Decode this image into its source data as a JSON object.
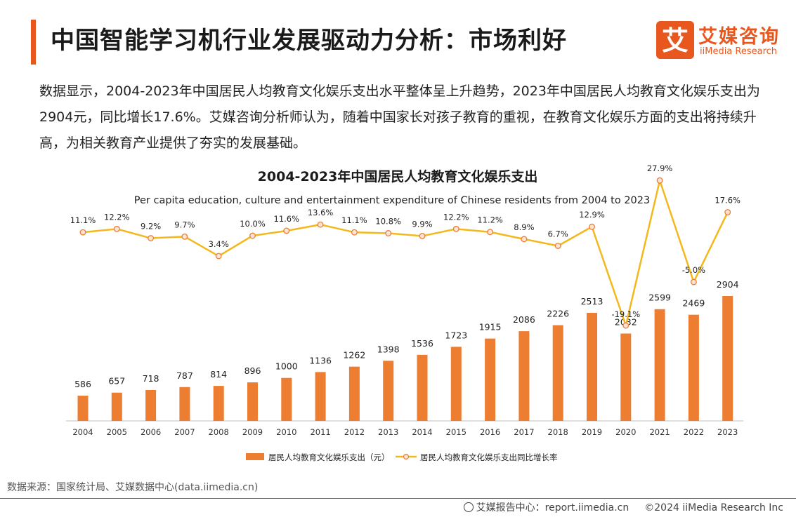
{
  "header": {
    "title": "中国智能学习机行业发展驱动力分析：市场利好",
    "logo_cn": "艾媒咨询",
    "logo_en": "iiMedia Research",
    "logo_glyph": "艾",
    "brand_color": "#e8571e"
  },
  "intro": "数据显示，2004-2023年中国居民人均教育文化娱乐支出水平整体呈上升趋势，2023年中国居民人均教育文化娱乐支出为2904元，同比增长17.6%。艾媒咨询分析师认为，随着中国家长对孩子教育的重视，在教育文化娱乐方面的支出将持续升高，为相关教育产业提供了夯实的发展基础。",
  "chart_data": {
    "type": "bar",
    "title": "2004-2023年中国居民人均教育文化娱乐支出",
    "subtitle": "Per capita education, culture and entertainment expenditure of Chinese residents from 2004 to 2023",
    "categories": [
      "2004",
      "2005",
      "2006",
      "2007",
      "2008",
      "2009",
      "2010",
      "2011",
      "2012",
      "2013",
      "2014",
      "2015",
      "2016",
      "2017",
      "2018",
      "2019",
      "2020",
      "2021",
      "2022",
      "2023"
    ],
    "series": [
      {
        "name": "居民人均教育文化娱乐支出（元）",
        "type": "bar",
        "color": "#ec7d31",
        "values": [
          586,
          657,
          718,
          787,
          814,
          896,
          1000,
          1136,
          1262,
          1398,
          1536,
          1723,
          1915,
          2086,
          2226,
          2513,
          2032,
          2599,
          2469,
          2904
        ],
        "labels": [
          "586",
          "657",
          "718",
          "787",
          "814",
          "896",
          "1000",
          "1136",
          "1262",
          "1398",
          "1536",
          "1723",
          "1915",
          "2086",
          "2226",
          "2513",
          "2032",
          "2599",
          "2469",
          "2904"
        ]
      },
      {
        "name": "居民人均教育文化娱乐支出同比增长率",
        "type": "line",
        "color": "#f3b81c",
        "values": [
          11.1,
          12.2,
          9.2,
          9.7,
          3.4,
          10.0,
          11.6,
          13.6,
          11.1,
          10.8,
          9.9,
          12.2,
          11.2,
          8.9,
          6.7,
          12.9,
          -19.1,
          27.9,
          -5.0,
          17.6
        ],
        "labels": [
          "11.1%",
          "12.2%",
          "9.2%",
          "9.7%",
          "3.4%",
          "10.0%",
          "11.6%",
          "13.6%",
          "11.1%",
          "10.8%",
          "9.9%",
          "12.2%",
          "11.2%",
          "8.9%",
          "6.7%",
          "12.9%",
          "-19.1%",
          "27.9%",
          "-5.0%",
          "17.6%"
        ]
      }
    ],
    "legend_position": "bottom",
    "grid": false
  },
  "source": "数据来源：国家统计局、艾媒数据中心(data.iimedia.cn)",
  "footer": {
    "report_center": "艾媒报告中心：report.iimedia.cn",
    "copyright": "©2024  iiMedia Research  Inc"
  }
}
